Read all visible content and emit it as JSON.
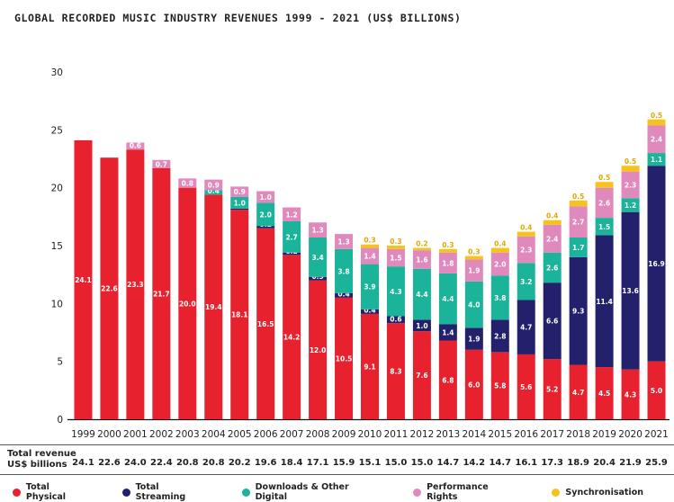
{
  "title": "GLOBAL RECORDED MUSIC INDUSTRY REVENUES 1999 - 2021 (US$ BILLIONS)",
  "totals_label_line1": "Total revenue",
  "totals_label_line2": "US$ billions",
  "legend": [
    {
      "name": "Total Physical",
      "color": "#e8212e"
    },
    {
      "name": "Total Streaming",
      "color": "#23216b"
    },
    {
      "name": "Downloads & Other Digital",
      "color": "#1bb39a"
    },
    {
      "name": "Performance Rights",
      "color": "#e089bd"
    },
    {
      "name": "Synchronisation",
      "color": "#f5c31c"
    }
  ],
  "chart_data": {
    "type": "bar",
    "stacked": true,
    "title": "GLOBAL RECORDED MUSIC INDUSTRY REVENUES 1999 - 2021 (US$ BILLIONS)",
    "ylim": [
      0,
      30
    ],
    "yticks": [
      0,
      5,
      10,
      15,
      20,
      25,
      30
    ],
    "categories": [
      "1999",
      "2000",
      "2001",
      "2002",
      "2003",
      "2004",
      "2005",
      "2006",
      "2007",
      "2008",
      "2009",
      "2010",
      "2011",
      "2012",
      "2013",
      "2014",
      "2015",
      "2016",
      "2017",
      "2018",
      "2019",
      "2020",
      "2021"
    ],
    "series": [
      {
        "name": "Total Physical",
        "color": "#e8212e",
        "values": [
          24.1,
          22.6,
          23.3,
          21.7,
          20.0,
          19.4,
          18.1,
          16.5,
          14.2,
          12.0,
          10.5,
          9.1,
          8.3,
          7.6,
          6.8,
          6.0,
          5.8,
          5.6,
          5.2,
          4.7,
          4.5,
          4.3,
          5.0
        ]
      },
      {
        "name": "Total Streaming",
        "color": "#23216b",
        "values": [
          null,
          null,
          null,
          null,
          null,
          null,
          0.1,
          0.2,
          0.2,
          0.3,
          0.4,
          0.4,
          0.6,
          1.0,
          1.4,
          1.9,
          2.8,
          4.7,
          6.6,
          9.3,
          11.4,
          13.6,
          16.9
        ]
      },
      {
        "name": "Downloads & Other Digital",
        "color": "#1bb39a",
        "values": [
          null,
          null,
          null,
          null,
          null,
          0.4,
          1.0,
          2.0,
          2.7,
          3.4,
          3.8,
          3.9,
          4.3,
          4.4,
          4.4,
          4.0,
          3.8,
          3.2,
          2.6,
          1.7,
          1.5,
          1.2,
          1.1
        ]
      },
      {
        "name": "Performance Rights",
        "color": "#e089bd",
        "values": [
          null,
          null,
          0.6,
          0.7,
          0.8,
          0.9,
          0.9,
          1.0,
          1.2,
          1.3,
          1.3,
          1.4,
          1.5,
          1.6,
          1.8,
          1.9,
          2.0,
          2.3,
          2.4,
          2.7,
          2.6,
          2.3,
          2.4
        ]
      },
      {
        "name": "Synchronisation",
        "color": "#f5c31c",
        "values": [
          null,
          null,
          null,
          null,
          null,
          null,
          null,
          null,
          null,
          null,
          null,
          0.3,
          0.3,
          0.2,
          0.3,
          0.3,
          0.4,
          0.4,
          0.4,
          0.5,
          0.5,
          0.5,
          0.5
        ]
      }
    ],
    "totals": [
      "24.1",
      "22.6",
      "24.0",
      "22.4",
      "20.8",
      "20.8",
      "20.2",
      "19.6",
      "18.4",
      "17.1",
      "15.9",
      "15.1",
      "15.0",
      "15.0",
      "14.7",
      "14.2",
      "14.7",
      "16.1",
      "17.3",
      "18.9",
      "20.4",
      "21.9",
      "25.9"
    ]
  }
}
